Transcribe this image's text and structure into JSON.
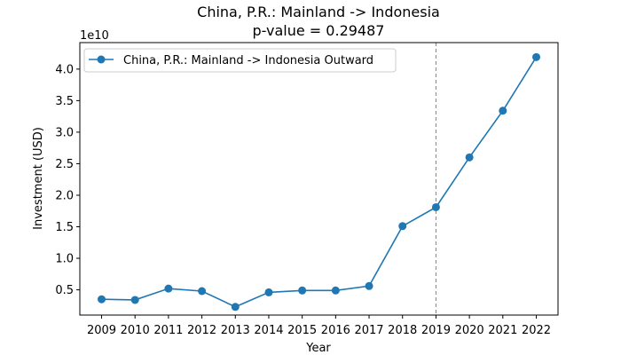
{
  "chart_data": {
    "type": "line",
    "title_line1": "China, P.R.: Mainland -> Indonesia",
    "title_line2": "p-value = 0.29487",
    "xlabel": "Year",
    "ylabel": "Investment (USD)",
    "y_offset_label": "1e10",
    "x": [
      2009,
      2010,
      2011,
      2012,
      2013,
      2014,
      2015,
      2016,
      2017,
      2018,
      2019,
      2020,
      2021,
      2022
    ],
    "x_tick_labels": [
      "2009",
      "2010",
      "2011",
      "2012",
      "2013",
      "2014",
      "2015",
      "2016",
      "2017",
      "2018",
      "2019",
      "2020",
      "2021",
      "2022"
    ],
    "y_ticks": [
      0.5,
      1.0,
      1.5,
      2.0,
      2.5,
      3.0,
      3.5,
      4.0
    ],
    "y_tick_labels": [
      "0.5",
      "1.0",
      "1.5",
      "2.0",
      "2.5",
      "3.0",
      "3.5",
      "4.0"
    ],
    "y_scale_exponent": 10,
    "ylim": [
      0.1,
      4.42
    ],
    "xlim": [
      2008.35,
      2022.65
    ],
    "series": [
      {
        "name": "China, P.R.: Mainland -> Indonesia Outward",
        "values": [
          0.35,
          0.34,
          0.52,
          0.48,
          0.23,
          0.46,
          0.49,
          0.49,
          0.56,
          1.51,
          1.81,
          2.6,
          3.34,
          4.19
        ],
        "color": "#1f77b4"
      }
    ],
    "vline": {
      "x": 2019,
      "color": "#808080",
      "style": "dashed"
    },
    "legend": {
      "position": "upper-left",
      "label": "China, P.R.: Mainland -> Indonesia Outward"
    },
    "grid": false
  }
}
